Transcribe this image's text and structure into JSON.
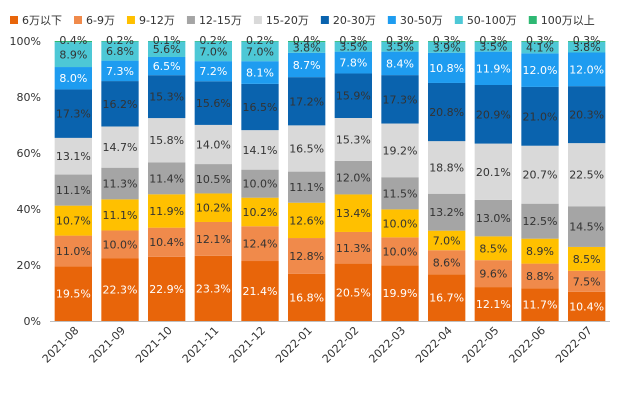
{
  "chart_data": {
    "type": "bar",
    "stacked": true,
    "percent_stacked": true,
    "title": "",
    "xlabel": "",
    "ylabel": "",
    "ylim": [
      0,
      100
    ],
    "y_ticks": [
      "0%",
      "20%",
      "40%",
      "60%",
      "80%",
      "100%"
    ],
    "grid": false,
    "legend_position": "top",
    "categories": [
      "2021-08",
      "2021-09",
      "2021-10",
      "2021-11",
      "2021-12",
      "2022-01",
      "2022-02",
      "2022-03",
      "2022-04",
      "2022-05",
      "2022-06",
      "2022-07"
    ],
    "series": [
      {
        "name": "6万以下",
        "color": "#E8650A",
        "label_color": "#ffffff",
        "values": [
          19.5,
          22.3,
          22.9,
          23.3,
          21.4,
          16.8,
          20.5,
          19.9,
          16.7,
          12.1,
          11.7,
          10.4
        ]
      },
      {
        "name": "6-9万",
        "color": "#F08A4B",
        "label_color": "#333333",
        "values": [
          11.0,
          10.0,
          10.4,
          12.1,
          12.4,
          12.8,
          11.3,
          10.0,
          8.6,
          9.6,
          8.8,
          7.5
        ]
      },
      {
        "name": "9-12万",
        "color": "#FFC000",
        "label_color": "#333333",
        "values": [
          10.7,
          11.1,
          11.9,
          10.2,
          10.2,
          12.6,
          13.4,
          10.0,
          7.0,
          8.5,
          8.9,
          8.5
        ]
      },
      {
        "name": "12-15万",
        "color": "#A5A5A5",
        "label_color": "#333333",
        "values": [
          11.1,
          11.3,
          11.4,
          10.5,
          10.0,
          11.1,
          12.0,
          11.5,
          13.2,
          13.0,
          12.5,
          14.5
        ]
      },
      {
        "name": "15-20万",
        "color": "#D9D9D9",
        "label_color": "#333333",
        "values": [
          13.1,
          14.7,
          15.8,
          14.0,
          14.1,
          16.5,
          15.3,
          19.2,
          18.8,
          20.1,
          20.7,
          22.5
        ]
      },
      {
        "name": "20-30万",
        "color": "#0A63AE",
        "label_color": "#333333",
        "values": [
          17.3,
          16.2,
          15.3,
          15.6,
          16.5,
          17.2,
          15.9,
          17.3,
          20.8,
          20.9,
          21.0,
          20.3
        ]
      },
      {
        "name": "30-50万",
        "color": "#1E9CF0",
        "label_color": "#ffffff",
        "values": [
          8.0,
          7.3,
          6.5,
          7.2,
          8.1,
          8.7,
          7.8,
          8.4,
          10.8,
          11.9,
          12.0,
          12.0
        ]
      },
      {
        "name": "50-100万",
        "color": "#4DC8D6",
        "label_color": "#333333",
        "values": [
          8.9,
          6.8,
          5.6,
          7.0,
          7.0,
          3.8,
          3.5,
          3.5,
          3.9,
          3.5,
          4.1,
          3.8
        ]
      },
      {
        "name": "100万以上",
        "color": "#2EB873",
        "label_color": "#333333",
        "values": [
          0.4,
          0.2,
          0.1,
          0.2,
          0.2,
          0.4,
          0.3,
          0.3,
          0.3,
          0.3,
          0.3,
          0.3
        ]
      }
    ]
  }
}
